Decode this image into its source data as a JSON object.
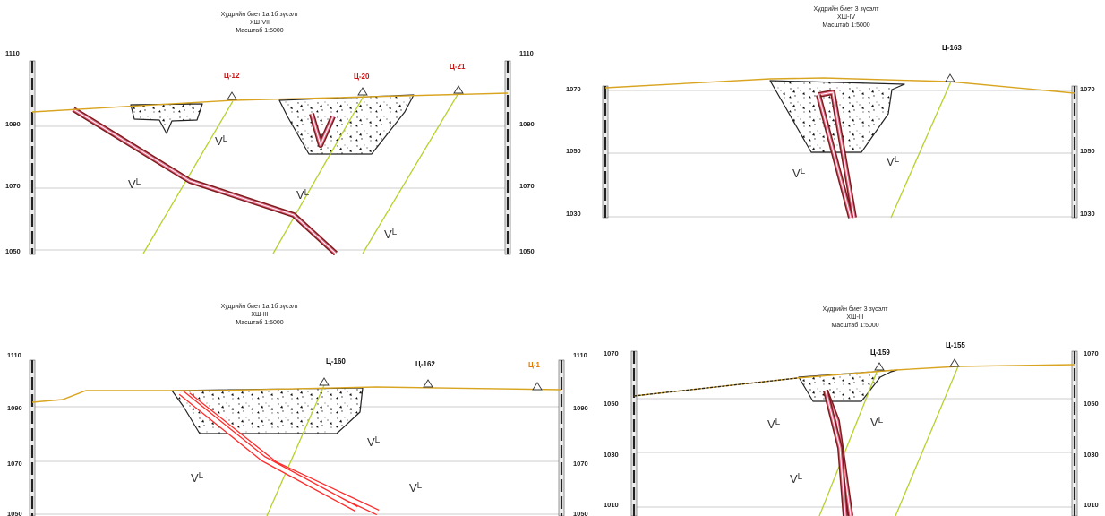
{
  "colors": {
    "topography": "#d9a521",
    "fault": "#b7d12a",
    "ore_outline": "#7a1a1a",
    "ore_inner": "#e26b8a",
    "ore_bright": "#ff2b2b",
    "drill_trace": "#1fb51f",
    "gridline": "#bdbdbd",
    "pit_outline": "#222222"
  },
  "panels": [
    {
      "id": "tl",
      "title": "Худрийн биет 1а,1б зүсэлт",
      "profile": "ХШ-VII",
      "scale": "Масштаб 1:5000",
      "left_ticks": [
        "1110",
        "1090",
        "1070",
        "1050"
      ],
      "right_ticks": [
        "1110",
        "1090",
        "1070",
        "1050"
      ],
      "stations": [
        {
          "label": "Ц-12",
          "color": "#cc1111"
        },
        {
          "label": "Ц-20",
          "color": "#cc1111"
        },
        {
          "label": "Ц-21",
          "color": "#cc1111"
        }
      ],
      "lithology": [
        {
          "symbol": "V",
          "super": "L"
        },
        {
          "symbol": "V",
          "super": "L"
        },
        {
          "symbol": "V",
          "super": "L"
        },
        {
          "symbol": "V",
          "super": "L"
        }
      ]
    },
    {
      "id": "tr",
      "title": "Худрийн биет 3 зүсэлт",
      "profile": "ХШ-IV",
      "scale": "Масштаб 1:5000",
      "left_ticks": [
        "1070",
        "1050",
        "1030"
      ],
      "right_ticks": [
        "1070",
        "1050",
        "1030"
      ],
      "stations": [
        {
          "label": "Ц-163",
          "color": "#111111"
        }
      ],
      "lithology": [
        {
          "symbol": "V",
          "super": "L"
        },
        {
          "symbol": "V",
          "super": "L"
        }
      ]
    },
    {
      "id": "bl",
      "title": "Худрийн биет 1а,1б зүсэлт",
      "profile": "ХШ-III",
      "scale": "Масштаб 1:5000",
      "left_ticks": [
        "1110",
        "1090",
        "1070",
        "1050"
      ],
      "right_ticks": [
        "1110",
        "1090",
        "1070",
        "1050"
      ],
      "stations": [
        {
          "label": "Ц-160",
          "color": "#111111"
        },
        {
          "label": "Ц-162",
          "color": "#111111"
        },
        {
          "label": "Ц-1",
          "color": "#e07b00"
        }
      ],
      "lithology": [
        {
          "symbol": "V",
          "super": "L"
        },
        {
          "symbol": "V",
          "super": "L"
        },
        {
          "symbol": "V",
          "super": "L"
        }
      ]
    },
    {
      "id": "br",
      "title": "Худрийн биет 3 зүсэлт",
      "profile": "ХШ-III",
      "scale": "Масштаб 1:5000",
      "left_ticks": [
        "1070",
        "1050",
        "1030",
        "1010"
      ],
      "right_ticks": [
        "1070",
        "1050",
        "1030",
        "1010"
      ],
      "stations": [
        {
          "label": "Ц-159",
          "color": "#111111"
        },
        {
          "label": "Ц-155",
          "color": "#111111"
        }
      ],
      "lithology": [
        {
          "symbol": "V",
          "super": "L"
        },
        {
          "symbol": "V",
          "super": "L"
        },
        {
          "symbol": "V",
          "super": "L"
        }
      ]
    }
  ]
}
